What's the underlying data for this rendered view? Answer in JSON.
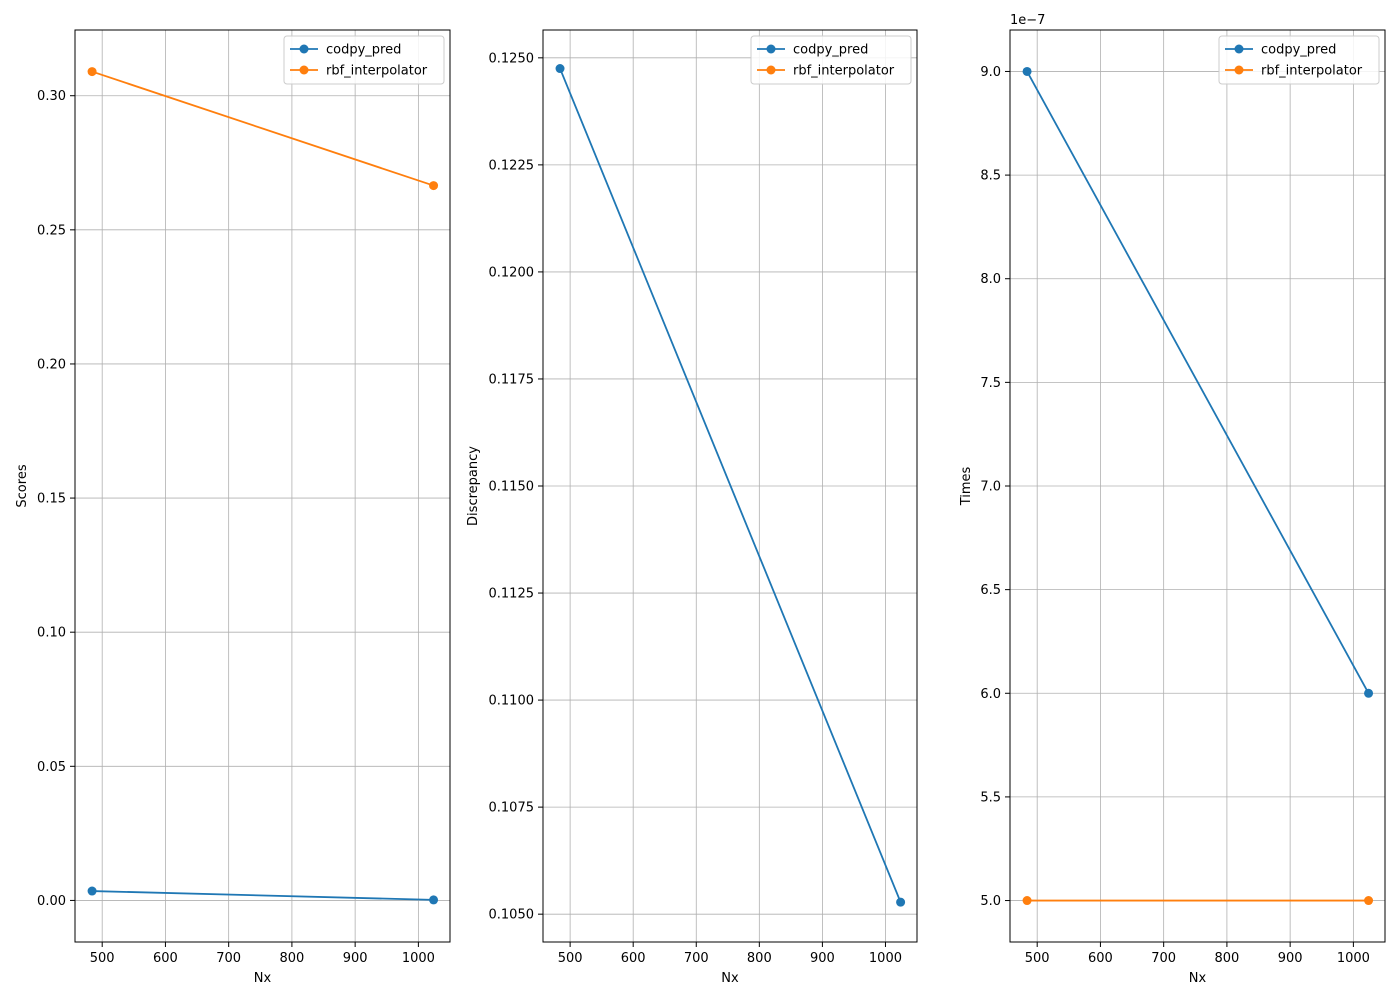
{
  "chart_data": [
    {
      "type": "line",
      "xlabel": "Nx",
      "ylabel": "Scores",
      "xlim": [
        457,
        1050
      ],
      "ylim": [
        -0.0155,
        0.3245
      ],
      "xticks": [
        500,
        600,
        700,
        800,
        900,
        1000
      ],
      "xtick_labels": [
        "500",
        "600",
        "700",
        "800",
        "900",
        "1000"
      ],
      "yticks": [
        0.0,
        0.05,
        0.1,
        0.15,
        0.2,
        0.25,
        0.3
      ],
      "ytick_labels": [
        "0.00",
        "0.05",
        "0.10",
        "0.15",
        "0.20",
        "0.25",
        "0.30"
      ],
      "grid": true,
      "legend": "upper right",
      "series": [
        {
          "name": "codpy_pred",
          "color": "#1f77b4",
          "x": [
            484,
            1024
          ],
          "y": [
            0.0035,
            0.0002
          ]
        },
        {
          "name": "rbf_interpolator",
          "color": "#ff7f0e",
          "x": [
            484,
            1024
          ],
          "y": [
            0.309,
            0.2665
          ]
        }
      ]
    },
    {
      "type": "line",
      "xlabel": "Nx",
      "ylabel": "Discrepancy",
      "xlim": [
        457,
        1050
      ],
      "ylim": [
        0.10435,
        0.12565
      ],
      "xticks": [
        500,
        600,
        700,
        800,
        900,
        1000
      ],
      "xtick_labels": [
        "500",
        "600",
        "700",
        "800",
        "900",
        "1000"
      ],
      "yticks": [
        0.105,
        0.1075,
        0.11,
        0.1125,
        0.115,
        0.1175,
        0.12,
        0.1225,
        0.125
      ],
      "ytick_labels": [
        "0.1050",
        "0.1075",
        "0.1100",
        "0.1125",
        "0.1150",
        "0.1175",
        "0.1200",
        "0.1225",
        "0.1250"
      ],
      "grid": true,
      "legend": "upper right",
      "series": [
        {
          "name": "codpy_pred",
          "color": "#1f77b4",
          "x": [
            484,
            1024
          ],
          "y": [
            0.12475,
            0.10528
          ]
        },
        {
          "name": "rbf_interpolator",
          "color": "#ff7f0e",
          "x": [],
          "y": []
        }
      ]
    },
    {
      "type": "line",
      "xlabel": "Nx",
      "ylabel": "Times",
      "offset_text": "1e−7",
      "xlim": [
        457,
        1050
      ],
      "ylim": [
        4.8,
        9.2
      ],
      "xticks": [
        500,
        600,
        700,
        800,
        900,
        1000
      ],
      "xtick_labels": [
        "500",
        "600",
        "700",
        "800",
        "900",
        "1000"
      ],
      "yticks": [
        5.0,
        5.5,
        6.0,
        6.5,
        7.0,
        7.5,
        8.0,
        8.5,
        9.0
      ],
      "ytick_labels": [
        "5.0",
        "5.5",
        "6.0",
        "6.5",
        "7.0",
        "7.5",
        "8.0",
        "8.5",
        "9.0"
      ],
      "grid": true,
      "legend": "upper right",
      "series": [
        {
          "name": "codpy_pred",
          "color": "#1f77b4",
          "x": [
            484,
            1024
          ],
          "y": [
            9.0,
            6.0
          ]
        },
        {
          "name": "rbf_interpolator",
          "color": "#ff7f0e",
          "x": [
            484,
            1024
          ],
          "y": [
            5.0,
            5.0
          ]
        }
      ]
    }
  ]
}
